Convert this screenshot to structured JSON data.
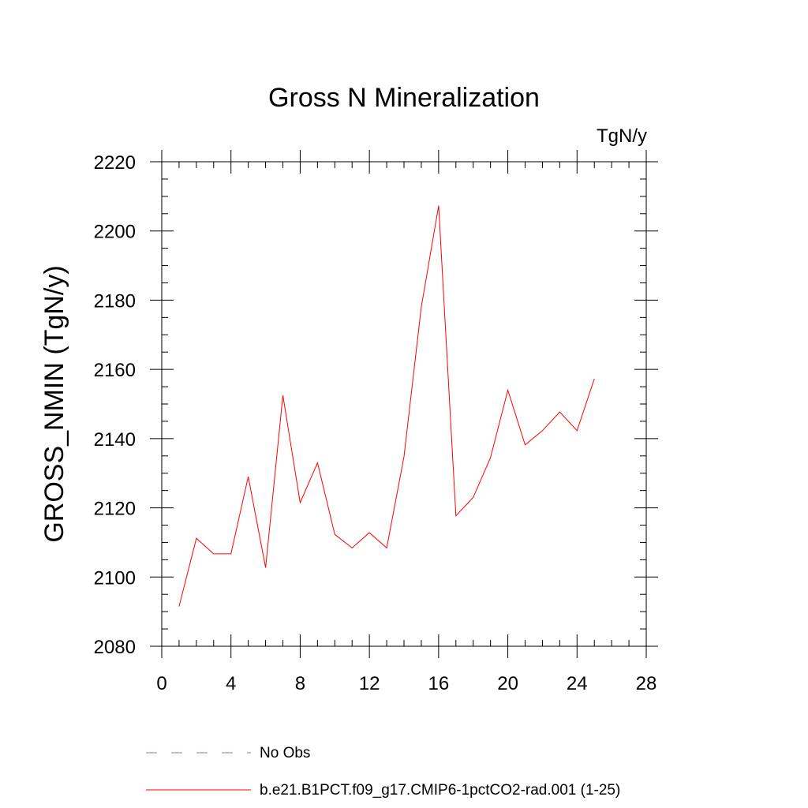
{
  "chart_data": {
    "type": "line",
    "title": "Gross N Mineralization",
    "units_label": "TgN/y",
    "xlabel": "",
    "ylabel": "GROSS_NMIN  (TgN/y)",
    "xlim": [
      0,
      28
    ],
    "ylim": [
      2080,
      2220
    ],
    "x_ticks": [
      0,
      4,
      8,
      12,
      16,
      20,
      24,
      28
    ],
    "y_ticks": [
      2080,
      2100,
      2120,
      2140,
      2160,
      2180,
      2200,
      2220
    ],
    "x_minor_step": 1,
    "y_minor_step": 5,
    "grid": false,
    "legend_position": "bottom",
    "series": [
      {
        "name": "b.e21.B1PCT.f09_g17.CMIP6-1pctCO2-rad.001 (1-25)",
        "color": "#ff0000",
        "style": "solid",
        "x": [
          1,
          2,
          3,
          4,
          5,
          6,
          7,
          8,
          9,
          10,
          11,
          12,
          13,
          14,
          15,
          16,
          17,
          18,
          19,
          20,
          21,
          22,
          23,
          24,
          25
        ],
        "values": [
          2091.5,
          2111.2,
          2106.7,
          2106.7,
          2129.0,
          2102.7,
          2152.5,
          2121.5,
          2133.0,
          2112.3,
          2108.4,
          2112.8,
          2108.4,
          2134.8,
          2178.0,
          2207.3,
          2117.7,
          2123.0,
          2134.5,
          2154.0,
          2138.2,
          2142.3,
          2147.7,
          2142.3,
          2157.3
        ]
      }
    ],
    "legend": [
      {
        "label": "No Obs",
        "color": "#7b78c8",
        "style": "dashed"
      },
      {
        "label": "b.e21.B1PCT.f09_g17.CMIP6-1pctCO2-rad.001 (1-25)",
        "color": "#ff0000",
        "style": "solid"
      }
    ]
  }
}
